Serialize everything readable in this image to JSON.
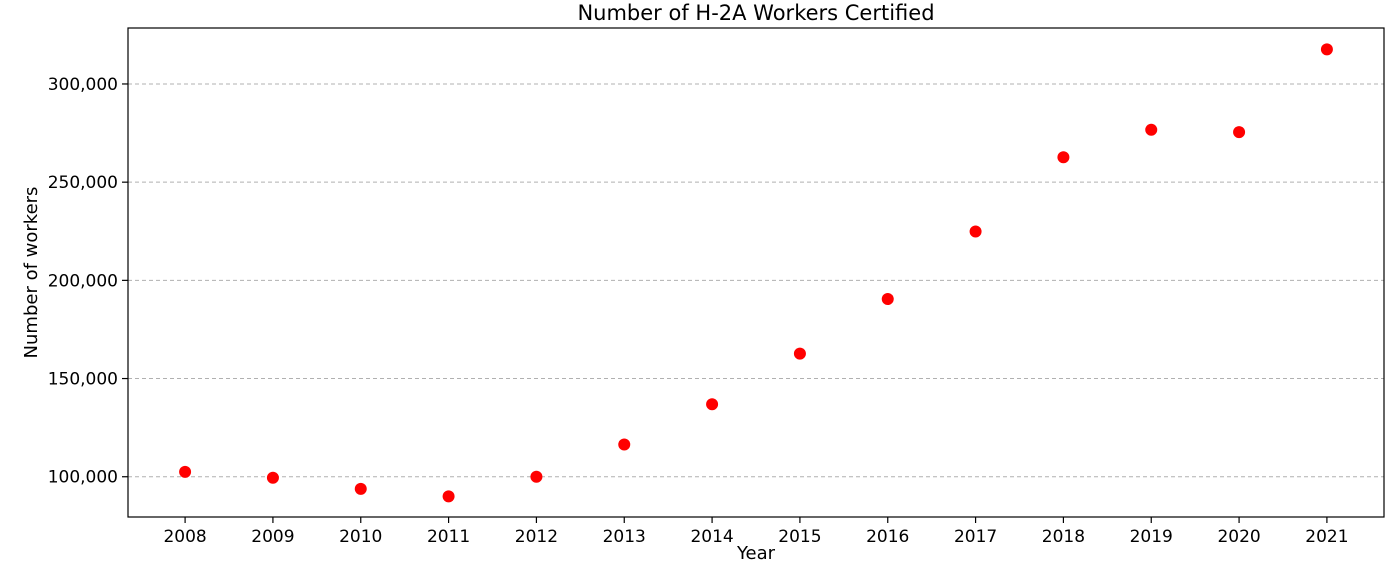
{
  "chart_data": {
    "type": "scatter",
    "title": "Number of H-2A Workers Certified",
    "xlabel": "Year",
    "ylabel": "Number of workers",
    "x": [
      2008,
      2009,
      2010,
      2011,
      2012,
      2013,
      2014,
      2015,
      2016,
      2017,
      2018,
      2019,
      2020,
      2021
    ],
    "y": [
      102500,
      99500,
      93800,
      90000,
      100000,
      116400,
      136900,
      162700,
      190500,
      224900,
      262700,
      276700,
      275500,
      317600
    ],
    "x_tick_labels": [
      "2008",
      "2009",
      "2010",
      "2011",
      "2012",
      "2013",
      "2014",
      "2015",
      "2016",
      "2017",
      "2018",
      "2019",
      "2020",
      "2021"
    ],
    "y_ticks": [
      100000,
      150000,
      200000,
      250000,
      300000
    ],
    "y_tick_labels": [
      "100,000",
      "150,000",
      "200,000",
      "250,000",
      "300,000"
    ],
    "xlim": [
      2007.35,
      2021.65
    ],
    "ylim": [
      79500,
      328500
    ],
    "grid": "horizontal dashed",
    "marker_color": "#ff0000",
    "grid_color": "#b0b0b0"
  }
}
